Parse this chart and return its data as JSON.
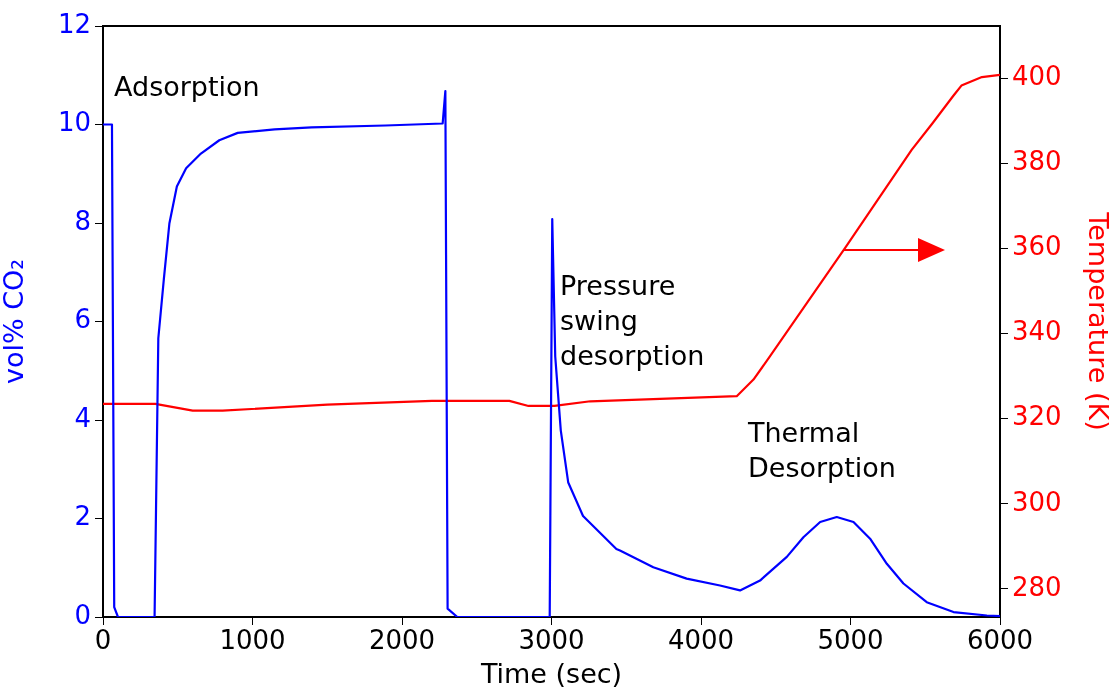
{
  "chart_data": {
    "type": "line",
    "xlabel": "Time (sec)",
    "ylabel": "vol% CO₂",
    "y2label": "Temperature (K)",
    "xlim": [
      0,
      6000
    ],
    "xticks": [
      0,
      1000,
      2000,
      3000,
      4000,
      5000,
      6000
    ],
    "ylim": [
      0,
      12
    ],
    "yticks": [
      0,
      2,
      4,
      6,
      8,
      10,
      12
    ],
    "y2lim": [
      273.4,
      412.3
    ],
    "y2ticks": [
      280,
      300,
      320,
      340,
      360,
      380,
      400
    ],
    "grid": false,
    "legend": false,
    "marker": "none",
    "line_style": "solid",
    "annotations": [
      "Adsorption",
      "Pressure swing desorption",
      "Thermal Desorption"
    ],
    "series": [
      {
        "color": "#0000ff",
        "x": [
          0,
          60,
          75,
          100,
          345,
          370,
          407,
          444,
          494,
          556,
          655,
          778,
          901,
          1148,
          1395,
          1889,
          2272,
          2290,
          2305,
          2370,
          2988,
          3005,
          3025,
          3062,
          3112,
          3211,
          3434,
          3458,
          3681,
          3904,
          4127,
          4261,
          4395,
          4574,
          4685,
          4797,
          4908,
          5020,
          5131,
          5243,
          5354,
          5510,
          5689,
          5912,
          6000
        ],
        "values": [
          10,
          10,
          0.2,
          0,
          0,
          5.66,
          6.86,
          7.99,
          8.74,
          9.11,
          9.41,
          9.68,
          9.83,
          9.9,
          9.94,
          9.98,
          10.02,
          10.68,
          0.17,
          0,
          0,
          8.08,
          5.29,
          3.79,
          2.73,
          2.05,
          1.38,
          1.35,
          1.01,
          0.78,
          0.64,
          0.54,
          0.74,
          1.22,
          1.62,
          1.93,
          2.03,
          1.93,
          1.59,
          1.08,
          0.68,
          0.3,
          0.1,
          0.03,
          0.02
        ]
      },
      {
        "color": "#ff0000",
        "axis": "y2",
        "x": [
          0,
          350,
          600,
          800,
          1500,
          2200,
          2718,
          2846,
          3020,
          3260,
          4239,
          4351,
          4462,
          4963,
          5409,
          5550,
          5688,
          5742,
          5879,
          6000
        ],
        "values": [
          323.5,
          323.5,
          321.9,
          321.9,
          323.3,
          324.2,
          324.2,
          323,
          323,
          324.1,
          325.3,
          329.2,
          334.7,
          360.1,
          383.2,
          389.5,
          395.9,
          398.3,
          400.3,
          400.8
        ]
      }
    ]
  }
}
